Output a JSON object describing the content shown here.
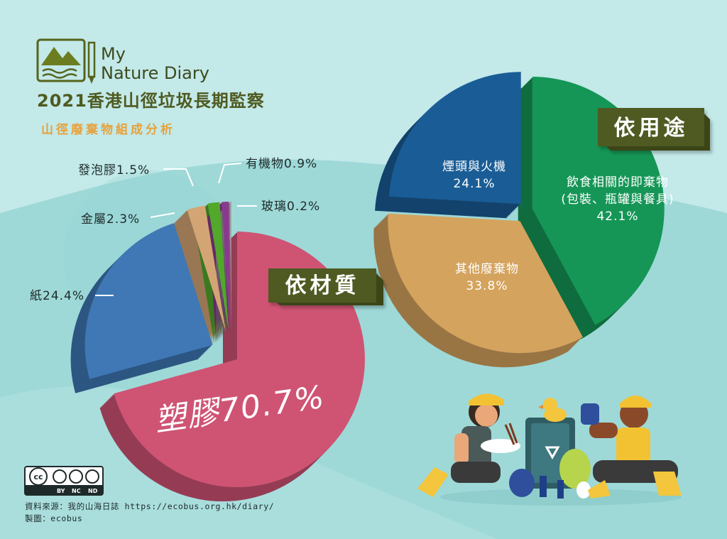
{
  "logo": {
    "line1": "My",
    "line2": "Nature Diary"
  },
  "title": "2021香港山徑垃圾長期監察",
  "subtitle": "山徑廢棄物組成分析",
  "tags": {
    "material": "依材質",
    "usage": "依用途"
  },
  "license": {
    "cc": "cc",
    "by": "BY",
    "nc": "NC",
    "nd": "ND"
  },
  "source": {
    "line1": "資料來源：我的山海日誌 https://ecobus.org.hk/diary/",
    "line2": "製圖：ecobus"
  },
  "colors": {
    "background": "#bfe6e6",
    "plastic": "#cf5474",
    "paper": "#3f78b5",
    "metal": "#d4a574",
    "foam": "#52a82a",
    "organic": "#8a3a8e",
    "glass": "#9e9e9e",
    "food": "#159656",
    "cigarette": "#1a5d96",
    "other": "#d4a35e",
    "tag": "#505a22"
  },
  "chart_data": [
    {
      "type": "pie",
      "title": "依材質",
      "slices": [
        {
          "label": "塑膠",
          "value": 70.7,
          "display": "塑膠70.7%"
        },
        {
          "label": "紙",
          "value": 24.4,
          "display": "紙24.4%"
        },
        {
          "label": "金屬",
          "value": 2.3,
          "display": "金屬2.3%"
        },
        {
          "label": "發泡膠",
          "value": 1.5,
          "display": "發泡膠1.5%"
        },
        {
          "label": "有機物",
          "value": 0.9,
          "display": "有機物0.9%"
        },
        {
          "label": "玻璃",
          "value": 0.2,
          "display": "玻璃0.2%"
        }
      ]
    },
    {
      "type": "pie",
      "title": "依用途",
      "slices": [
        {
          "label": "飲食相關的即棄物(包裝、瓶罐與餐具)",
          "line1": "飲食相關的即棄物",
          "line2": "(包裝、瓶罐與餐具)",
          "value": 42.1,
          "display": "42.1%"
        },
        {
          "label": "其他廢棄物",
          "line1": "其他廢棄物",
          "value": 33.8,
          "display": "33.8%"
        },
        {
          "label": "煙頭與火機",
          "line1": "煙頭與火機",
          "value": 24.1,
          "display": "24.1%"
        }
      ]
    }
  ]
}
